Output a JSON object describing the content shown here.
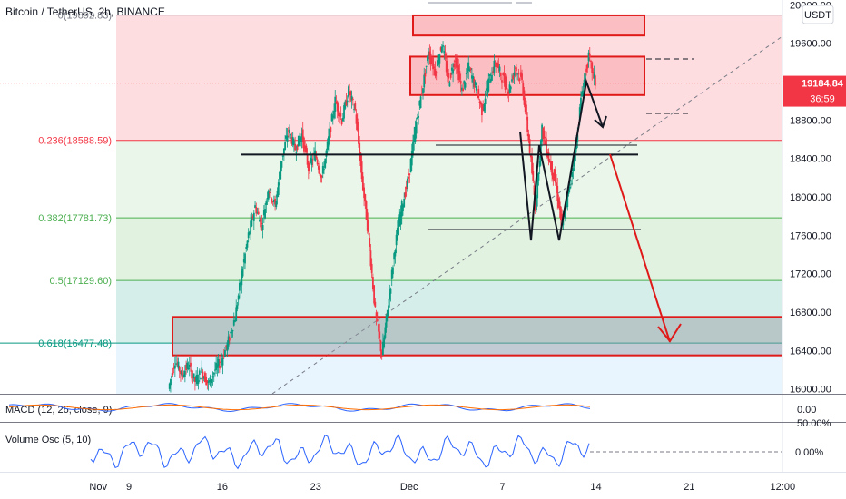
{
  "chart_data": {
    "type": "candlestick",
    "title": "Bitcoin / TetherUS, 2h, BINANCE",
    "currency": "USDT",
    "last_price": "19184.84",
    "countdown": "36:59",
    "ylim": [
      15950,
      20050
    ],
    "y_ticks": [
      {
        "value": 20000,
        "label": "20000.00"
      },
      {
        "value": 19600,
        "label": "19600.00"
      },
      {
        "value": 18800,
        "label": "18800.00"
      },
      {
        "value": 18400,
        "label": "18400.00"
      },
      {
        "value": 18000,
        "label": "18000.00"
      },
      {
        "value": 17600,
        "label": "17600.00"
      },
      {
        "value": 17200,
        "label": "17200.00"
      },
      {
        "value": 16800,
        "label": "16800.00"
      },
      {
        "value": 16400,
        "label": "16400.00"
      },
      {
        "value": 16000,
        "label": "16000.00"
      }
    ],
    "x_ticks": [
      {
        "label": "Nov",
        "day": 6.7
      },
      {
        "label": "9",
        "day": 9
      },
      {
        "label": "16",
        "day": 16
      },
      {
        "label": "23",
        "day": 23
      },
      {
        "label": "Dec",
        "day": 30
      },
      {
        "label": "7",
        "day": 37
      },
      {
        "label": "14",
        "day": 44
      },
      {
        "label": "21",
        "day": 51
      },
      {
        "label": "12:00",
        "day": 58
      }
    ],
    "fib_levels": [
      {
        "ratio": "0",
        "value": 19892.83,
        "label": "0(19892.83)",
        "color": "#787b86"
      },
      {
        "ratio": "0.236",
        "value": 18588.59,
        "label": "0.236(18588.59)",
        "color": "#f23645"
      },
      {
        "ratio": "0.382",
        "value": 17781.73,
        "label": "0.382(17781.73)",
        "color": "#4caf50"
      },
      {
        "ratio": "0.5",
        "value": 17129.6,
        "label": "0.5(17129.60)",
        "color": "#4caf50"
      },
      {
        "ratio": "0.618",
        "value": 16477.48,
        "label": "0.618(16477.48)",
        "color": "#089981"
      }
    ],
    "price_path": [
      [
        12,
        16000
      ],
      [
        12.5,
        16300
      ],
      [
        13,
        16150
      ],
      [
        13.5,
        16250
      ],
      [
        14,
        16080
      ],
      [
        14.5,
        16180
      ],
      [
        15,
        16050
      ],
      [
        15.5,
        16200
      ],
      [
        16,
        16300
      ],
      [
        16.5,
        16500
      ],
      [
        17,
        16750
      ],
      [
        17.5,
        17200
      ],
      [
        18,
        17600
      ],
      [
        18.5,
        17900
      ],
      [
        19,
        17700
      ],
      [
        19.5,
        18100
      ],
      [
        20,
        17900
      ],
      [
        20.5,
        18400
      ],
      [
        21,
        18700
      ],
      [
        21.5,
        18500
      ],
      [
        22,
        18650
      ],
      [
        22.5,
        18300
      ],
      [
        23,
        18450
      ],
      [
        23.5,
        18200
      ],
      [
        24,
        18600
      ],
      [
        24.5,
        19000
      ],
      [
        25,
        18800
      ],
      [
        25.5,
        19100
      ],
      [
        26,
        18900
      ],
      [
        26.5,
        18200
      ],
      [
        27,
        17600
      ],
      [
        27.5,
        16800
      ],
      [
        28,
        16350
      ],
      [
        28.5,
        16900
      ],
      [
        29,
        17500
      ],
      [
        29.5,
        17900
      ],
      [
        30,
        18200
      ],
      [
        30.5,
        18700
      ],
      [
        31,
        19100
      ],
      [
        31.5,
        19500
      ],
      [
        32,
        19300
      ],
      [
        32.5,
        19600
      ],
      [
        33,
        19200
      ],
      [
        33.5,
        19450
      ],
      [
        34,
        19100
      ],
      [
        34.5,
        19350
      ],
      [
        35,
        19150
      ],
      [
        35.5,
        18900
      ],
      [
        36,
        19200
      ],
      [
        36.5,
        19400
      ],
      [
        37,
        19250
      ],
      [
        37.5,
        19100
      ],
      [
        38,
        19350
      ],
      [
        38.5,
        19200
      ],
      [
        39,
        18600
      ],
      [
        39.5,
        17900
      ],
      [
        40,
        18700
      ],
      [
        40.5,
        18400
      ],
      [
        41,
        18150
      ],
      [
        41.5,
        17700
      ],
      [
        42,
        18050
      ],
      [
        42.5,
        18500
      ],
      [
        43,
        19100
      ],
      [
        43.5,
        19450
      ],
      [
        44,
        19184.84
      ]
    ],
    "indicators": [
      {
        "label": "MACD (12, 26, close, 9)",
        "value": "0.00"
      },
      {
        "label": "Volume Osc (5, 10)",
        "value": "0.00%",
        "top_label": "50.00%"
      }
    ],
    "annotations": {
      "resistance_zones": [
        [
          19680,
          19890
        ],
        [
          19060,
          19460
        ]
      ],
      "support_zone": [
        16350,
        16750
      ],
      "neckline": 18440,
      "bottom_line": 17660,
      "projected_target": 16490
    }
  }
}
